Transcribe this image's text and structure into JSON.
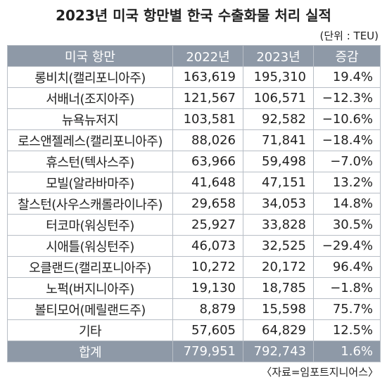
{
  "header": {
    "title": "2023년 미국 항만별 한국 수출화물 처리 실적",
    "unit": "(단위 : TEU)"
  },
  "table": {
    "columns": [
      "미국 항만",
      "2022년",
      "2023년",
      "증감"
    ],
    "rows": [
      [
        "롱비치(캘리포니아주)",
        "163,619",
        "195,310",
        "19.4%"
      ],
      [
        "서배너(조지아주)",
        "121,567",
        "106,571",
        "−12.3%"
      ],
      [
        "뉴욕뉴저지",
        "103,581",
        "92,582",
        "−10.6%"
      ],
      [
        "로스앤젤레스(캘리포니아주)",
        "88,026",
        "71,841",
        "−18.4%"
      ],
      [
        "휴스턴(텍사스주)",
        "63,966",
        "59,498",
        "−7.0%"
      ],
      [
        "모빌(알라바마주)",
        "41,648",
        "47,151",
        "13.2%"
      ],
      [
        "찰스턴(사우스캐롤라이나주)",
        "29,658",
        "34,053",
        "14.8%"
      ],
      [
        "터코마(워싱턴주)",
        "25,927",
        "33,828",
        "30.5%"
      ],
      [
        "시애틀(워싱턴주)",
        "46,073",
        "32,525",
        "−29.4%"
      ],
      [
        "오클랜드(캘리포니아주)",
        "10,272",
        "20,172",
        "96.4%"
      ],
      [
        "노퍽(버지니아주)",
        "19,130",
        "18,785",
        "−1.8%"
      ],
      [
        "볼티모어(메릴랜드주)",
        "8,879",
        "15,598",
        "75.7%"
      ],
      [
        "기타",
        "57,605",
        "64,829",
        "12.5%"
      ]
    ],
    "total": [
      "합계",
      "779,951",
      "792,743",
      "1.6%"
    ]
  },
  "footer": {
    "source": "〈자료=임포트지니어스〉"
  }
}
